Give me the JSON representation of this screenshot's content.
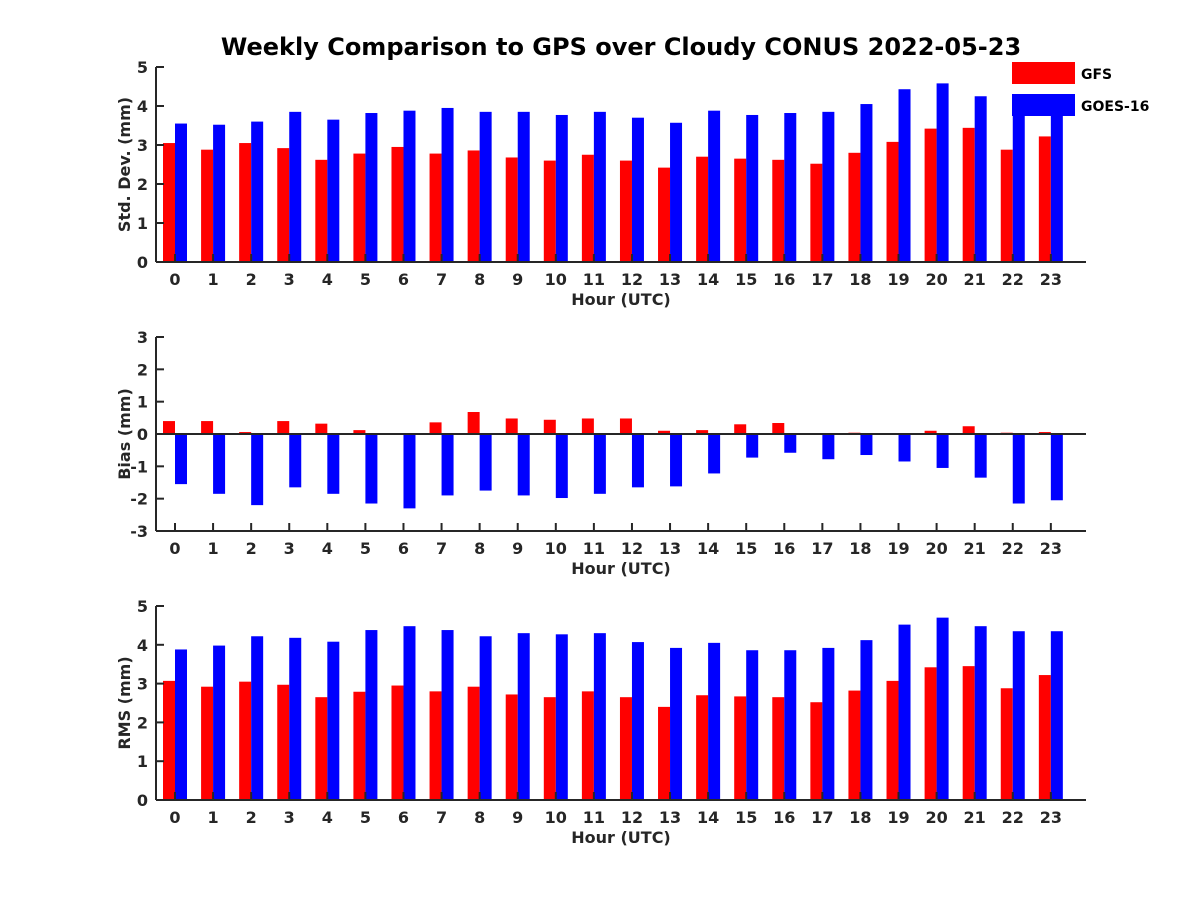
{
  "title": "Weekly Comparison to GPS over Cloudy CONUS 2022-05-23",
  "colors": {
    "GFS": "#ff0000",
    "GOES-16": "#0000ff"
  },
  "chart_data": [
    {
      "type": "bar",
      "categories": [
        "0",
        "1",
        "2",
        "3",
        "4",
        "5",
        "6",
        "7",
        "8",
        "9",
        "10",
        "11",
        "12",
        "13",
        "14",
        "15",
        "16",
        "17",
        "18",
        "19",
        "20",
        "21",
        "22",
        "23"
      ],
      "xlabel": "Hour (UTC)",
      "ylabel": "Std. Dev. (mm)",
      "ylim": [
        0,
        5
      ],
      "yticks": [
        0,
        1,
        2,
        3,
        4,
        5
      ],
      "legend": "top-right",
      "series": [
        {
          "name": "GFS",
          "values": [
            3.05,
            2.88,
            3.05,
            2.92,
            2.62,
            2.78,
            2.95,
            2.78,
            2.86,
            2.68,
            2.6,
            2.75,
            2.6,
            2.42,
            2.7,
            2.65,
            2.62,
            2.52,
            2.8,
            3.08,
            3.42,
            3.44,
            2.88,
            3.22
          ]
        },
        {
          "name": "GOES-16",
          "values": [
            3.55,
            3.52,
            3.6,
            3.85,
            3.65,
            3.82,
            3.88,
            3.95,
            3.85,
            3.85,
            3.77,
            3.85,
            3.7,
            3.57,
            3.88,
            3.77,
            3.82,
            3.85,
            4.05,
            4.43,
            4.58,
            4.25,
            3.78,
            3.78
          ]
        }
      ]
    },
    {
      "type": "bar",
      "categories": [
        "0",
        "1",
        "2",
        "3",
        "4",
        "5",
        "6",
        "7",
        "8",
        "9",
        "10",
        "11",
        "12",
        "13",
        "14",
        "15",
        "16",
        "17",
        "18",
        "19",
        "20",
        "21",
        "22",
        "23"
      ],
      "xlabel": "Hour (UTC)",
      "ylabel": "Bias (mm)",
      "ylim": [
        -3,
        3
      ],
      "yticks": [
        -3,
        -2,
        -1,
        0,
        1,
        2,
        3
      ],
      "series": [
        {
          "name": "GFS",
          "values": [
            0.4,
            0.4,
            0.06,
            0.4,
            0.32,
            0.12,
            0.0,
            0.36,
            0.68,
            0.48,
            0.44,
            0.48,
            0.48,
            0.1,
            0.12,
            0.3,
            0.34,
            0.0,
            0.04,
            0.0,
            0.1,
            0.24,
            0.04,
            0.06
          ]
        },
        {
          "name": "GOES-16",
          "values": [
            -1.55,
            -1.85,
            -2.2,
            -1.65,
            -1.85,
            -2.15,
            -2.3,
            -1.9,
            -1.75,
            -1.9,
            -1.98,
            -1.85,
            -1.65,
            -1.62,
            -1.22,
            -0.73,
            -0.58,
            -0.78,
            -0.65,
            -0.85,
            -1.05,
            -1.35,
            -2.15,
            -2.05
          ]
        }
      ]
    },
    {
      "type": "bar",
      "categories": [
        "0",
        "1",
        "2",
        "3",
        "4",
        "5",
        "6",
        "7",
        "8",
        "9",
        "10",
        "11",
        "12",
        "13",
        "14",
        "15",
        "16",
        "17",
        "18",
        "19",
        "20",
        "21",
        "22",
        "23"
      ],
      "xlabel": "Hour (UTC)",
      "ylabel": "RMS (mm)",
      "ylim": [
        0,
        5
      ],
      "yticks": [
        0,
        1,
        2,
        3,
        4,
        5
      ],
      "series": [
        {
          "name": "GFS",
          "values": [
            3.07,
            2.92,
            3.05,
            2.97,
            2.65,
            2.79,
            2.95,
            2.8,
            2.92,
            2.72,
            2.65,
            2.8,
            2.65,
            2.4,
            2.7,
            2.67,
            2.65,
            2.52,
            2.82,
            3.07,
            3.42,
            3.45,
            2.88,
            3.22
          ]
        },
        {
          "name": "GOES-16",
          "values": [
            3.88,
            3.98,
            4.22,
            4.18,
            4.08,
            4.38,
            4.48,
            4.38,
            4.22,
            4.3,
            4.27,
            4.3,
            4.07,
            3.92,
            4.05,
            3.86,
            3.86,
            3.92,
            4.12,
            4.52,
            4.7,
            4.48,
            4.35,
            4.35
          ]
        }
      ]
    }
  ]
}
